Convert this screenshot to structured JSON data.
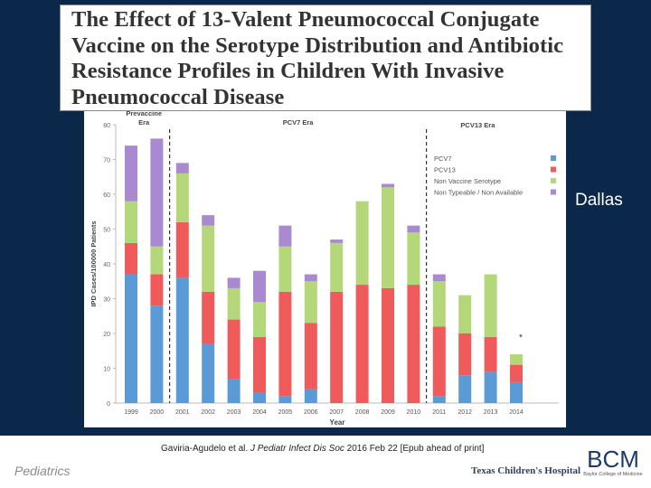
{
  "slide": {
    "title_lines": [
      "The Effect of 13-Valent Pneumococcal Conjugate",
      "Vaccine on the Serotype Distribution and Antibiotic",
      "Resistance Profiles in Children With Invasive",
      "Pneumococcal Disease"
    ],
    "side_label": "Dallas",
    "citation_authors": "Gaviria-Agudelo et al. ",
    "citation_journal": "J Pediatr Infect Dis Soc",
    "citation_rest": " 2016 Feb 22 [Epub ahead of print]",
    "department": "Pediatrics",
    "hospital_logo_text": "Texas Children's Hospital",
    "bcm_logo": "BCM",
    "bcm_tagline": "Baylor College of Medicine",
    "colors": {
      "background": "#0b2749",
      "pcv7": "#5b9bd5",
      "pcv13": "#ef5a5a",
      "nvt": "#b4d77a",
      "ntna": "#a98ad0"
    }
  },
  "chart_data": {
    "type": "bar",
    "stacked": true,
    "categories": [
      "1999",
      "2000",
      "2001",
      "2002",
      "2003",
      "2004",
      "2005",
      "2006",
      "2007",
      "2008",
      "2009",
      "2010",
      "2011",
      "2012",
      "2013",
      "2014"
    ],
    "series": [
      {
        "name": "PCV7",
        "color": "#5b9bd5",
        "values": [
          37,
          28,
          36,
          17,
          7,
          3,
          2,
          4,
          0,
          0,
          0,
          0,
          2,
          8,
          9,
          6
        ]
      },
      {
        "name": "PCV13",
        "color": "#ef5a5a",
        "values": [
          9,
          9,
          16,
          15,
          17,
          16,
          30,
          19,
          32,
          34,
          33,
          34,
          20,
          12,
          10,
          5
        ]
      },
      {
        "name": "Non Vaccine Serotype",
        "color": "#b4d77a",
        "values": [
          12,
          8,
          14,
          19,
          9,
          10,
          13,
          12,
          14,
          24,
          29,
          15,
          13,
          11,
          18,
          3
        ]
      },
      {
        "name": "Non Typeable / Non Available",
        "color": "#a98ad0",
        "values": [
          16,
          31,
          3,
          3,
          3,
          9,
          6,
          2,
          1,
          0,
          1,
          2,
          2,
          0,
          0,
          0
        ]
      }
    ],
    "xlabel": "Year",
    "ylabel": "IPD Cases/100000 Patients",
    "yticks": [
      "0",
      "10",
      "20",
      "30",
      "40",
      "50",
      "60",
      "70",
      "80"
    ],
    "ylim": [
      0,
      80
    ],
    "eras": [
      "Prevaccine Era",
      "PCV7 Era",
      "PCV13 Era"
    ],
    "annotation": "*",
    "legend_position": "top-right"
  }
}
